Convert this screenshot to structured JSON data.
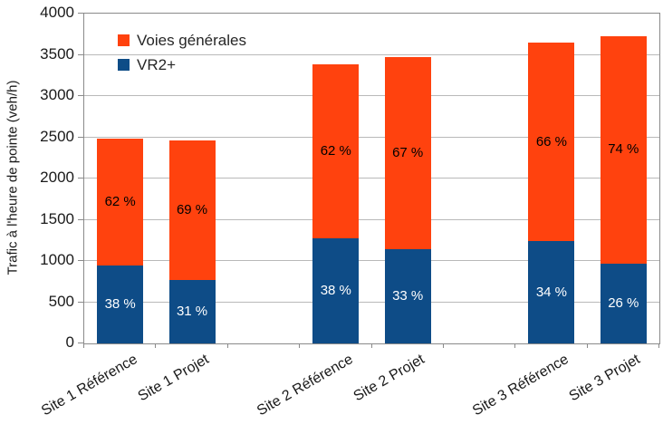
{
  "chart_data": {
    "type": "bar",
    "stacked": true,
    "title": "",
    "xlabel": "",
    "ylabel": "Trafic à l'heure de pointe (veh/h)",
    "ylim": [
      0,
      4000
    ],
    "ytick_step": 500,
    "grid": "horizontal",
    "legend": [
      "Voies générales",
      "VR2+"
    ],
    "legend_position": "top-left-inside",
    "slot_count": 8,
    "categories": [
      {
        "label": "Site 1 Référence",
        "slot": 0
      },
      {
        "label": "Site 1 Projet",
        "slot": 1
      },
      {
        "label": "Site 2  Référence",
        "slot": 3
      },
      {
        "label": "Site 2 Projet",
        "slot": 4
      },
      {
        "label": "Site 3  Référence",
        "slot": 6
      },
      {
        "label": "Site 3 Projet",
        "slot": 7
      }
    ],
    "series": [
      {
        "name": "VR2+",
        "color": "#0e4c87",
        "label_color": "#ffffff",
        "values": [
          940,
          770,
          1280,
          1140,
          1240,
          970
        ],
        "percent_labels": [
          "38 %",
          "31 %",
          "38 %",
          "33 %",
          "34 %",
          "26 %"
        ]
      },
      {
        "name": "Voies générales",
        "color": "#ff420e",
        "label_color": "#000000",
        "values": [
          1540,
          1690,
          2110,
          2330,
          2410,
          2760
        ],
        "percent_labels": [
          "62 %",
          "69 %",
          "62 %",
          "67 %",
          "66 %",
          "74 %"
        ]
      }
    ],
    "totals": [
      2480,
      2460,
      3390,
      3470,
      3650,
      3730
    ]
  },
  "colors": {
    "background": "#ffffff",
    "gridline": "#b9b9b9",
    "axis": "#8a8a8a",
    "text": "#1a1a1a"
  }
}
